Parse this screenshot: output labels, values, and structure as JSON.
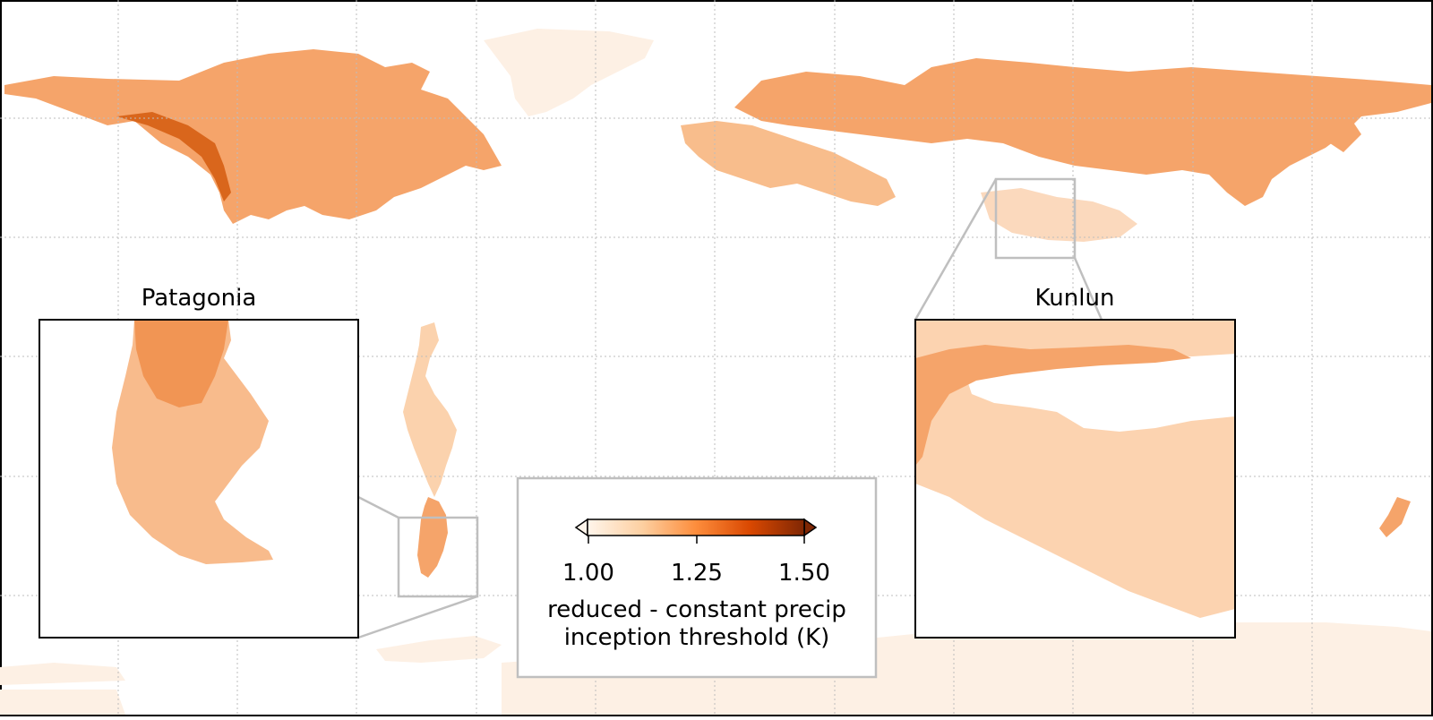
{
  "insets": [
    {
      "title": "Patagonia"
    },
    {
      "title": "Kunlun"
    }
  ],
  "colorbar": {
    "ticks": [
      "1.00",
      "1.25",
      "1.50"
    ],
    "label_line1": "reduced - constant precip",
    "label_line2": "inception threshold (K)",
    "range": [
      1.0,
      1.5
    ],
    "extend": "both",
    "colormap": [
      "#fff5eb",
      "#fdd0a2",
      "#fd8d3c",
      "#d94801",
      "#7f2704"
    ]
  },
  "map": {
    "projection": "plate carree",
    "gridlines": "dotted",
    "land_color": "#f4a167",
    "ice_color": "#fdf0e4"
  }
}
